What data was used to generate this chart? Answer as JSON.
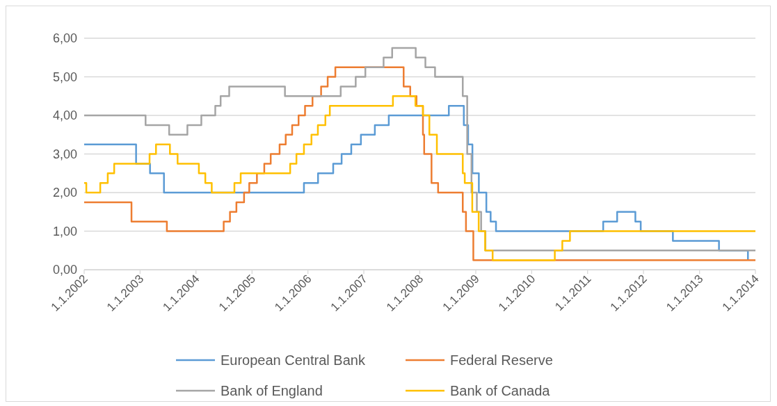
{
  "chart_data": {
    "type": "step",
    "xlim": [
      "2002-01-01",
      "2014-01-01"
    ],
    "xticks": [
      {
        "value": "2002-01-01",
        "label": "1.1.2002"
      },
      {
        "value": "2003-01-01",
        "label": "1.1.2003"
      },
      {
        "value": "2004-01-01",
        "label": "1.1.2004"
      },
      {
        "value": "2005-01-01",
        "label": "1.1.2005"
      },
      {
        "value": "2006-01-01",
        "label": "1.1.2006"
      },
      {
        "value": "2007-01-01",
        "label": "1.1.2007"
      },
      {
        "value": "2008-01-01",
        "label": "1.1.2008"
      },
      {
        "value": "2009-01-01",
        "label": "1.1.2009"
      },
      {
        "value": "2010-01-01",
        "label": "1.1.2010"
      },
      {
        "value": "2011-01-01",
        "label": "1.1.2011"
      },
      {
        "value": "2012-01-01",
        "label": "1.1.2012"
      },
      {
        "value": "2013-01-01",
        "label": "1.1.2013"
      },
      {
        "value": "2014-01-01",
        "label": "1.1.2014"
      }
    ],
    "ylim": [
      0,
      6
    ],
    "yticks": [
      {
        "value": 0,
        "label": "0,00"
      },
      {
        "value": 1,
        "label": "1,00"
      },
      {
        "value": 2,
        "label": "2,00"
      },
      {
        "value": 3,
        "label": "3,00"
      },
      {
        "value": 4,
        "label": "4,00"
      },
      {
        "value": 5,
        "label": "5,00"
      },
      {
        "value": 6,
        "label": "6,00"
      }
    ],
    "grid": "y",
    "legend": "bottom",
    "line_style": "solid",
    "series": [
      {
        "name": "European Central Bank",
        "color": "#5b9bd5",
        "x": [
          "2002-01-01",
          "2002-12-06",
          "2003-03-07",
          "2003-06-06",
          "2005-12-06",
          "2006-03-08",
          "2006-06-15",
          "2006-08-09",
          "2006-10-11",
          "2006-12-13",
          "2007-03-14",
          "2007-06-13",
          "2008-07-09",
          "2008-10-15",
          "2008-11-12",
          "2008-12-10",
          "2009-01-21",
          "2009-03-11",
          "2009-04-08",
          "2009-05-13",
          "2011-04-13",
          "2011-07-13",
          "2011-11-09",
          "2011-12-14",
          "2012-07-11",
          "2013-05-08",
          "2013-11-13"
        ],
        "values": [
          3.25,
          2.75,
          2.5,
          2.0,
          2.25,
          2.5,
          2.75,
          3.0,
          3.25,
          3.5,
          3.75,
          4.0,
          4.25,
          3.75,
          3.25,
          2.5,
          2.0,
          1.5,
          1.25,
          1.0,
          1.25,
          1.5,
          1.25,
          1.0,
          0.75,
          0.5,
          0.25
        ]
      },
      {
        "name": "Federal Reserve",
        "color": "#ed7d31",
        "x": [
          "2002-01-01",
          "2002-11-06",
          "2003-06-25",
          "2004-06-30",
          "2004-08-10",
          "2004-09-21",
          "2004-11-10",
          "2004-12-14",
          "2005-02-02",
          "2005-03-22",
          "2005-05-03",
          "2005-06-30",
          "2005-08-09",
          "2005-09-20",
          "2005-11-01",
          "2005-12-13",
          "2006-01-31",
          "2006-03-28",
          "2006-05-10",
          "2006-06-29",
          "2007-09-18",
          "2007-10-31",
          "2007-12-11",
          "2008-01-22",
          "2008-01-30",
          "2008-03-18",
          "2008-04-30",
          "2008-10-08",
          "2008-10-29",
          "2008-12-16",
          "2014-01-01"
        ],
        "values": [
          1.75,
          1.25,
          1.0,
          1.25,
          1.5,
          1.75,
          2.0,
          2.25,
          2.5,
          2.75,
          3.0,
          3.25,
          3.5,
          3.75,
          4.0,
          4.25,
          4.5,
          4.75,
          5.0,
          5.25,
          4.75,
          4.5,
          4.25,
          3.5,
          3.0,
          2.25,
          2.0,
          1.5,
          1.0,
          0.25,
          0.25
        ]
      },
      {
        "name": "Bank of England",
        "color": "#a5a5a5",
        "x": [
          "2002-01-01",
          "2003-02-06",
          "2003-07-10",
          "2003-11-06",
          "2004-02-05",
          "2004-05-06",
          "2004-06-10",
          "2004-08-05",
          "2005-08-04",
          "2006-08-03",
          "2006-11-09",
          "2007-01-11",
          "2007-05-10",
          "2007-07-05",
          "2007-12-06",
          "2008-02-07",
          "2008-04-10",
          "2008-10-08",
          "2008-11-06",
          "2008-12-04",
          "2009-01-08",
          "2009-02-05",
          "2009-03-05",
          "2014-01-01"
        ],
        "values": [
          4.0,
          3.75,
          3.5,
          3.75,
          4.0,
          4.25,
          4.5,
          4.75,
          4.5,
          4.75,
          5.0,
          5.25,
          5.5,
          5.75,
          5.5,
          5.25,
          5.0,
          4.5,
          3.0,
          2.0,
          1.5,
          1.0,
          0.5,
          0.5
        ]
      },
      {
        "name": "Bank of Canada",
        "color": "#ffc000",
        "x": [
          "2002-01-01",
          "2002-01-15",
          "2002-04-16",
          "2002-06-04",
          "2002-07-16",
          "2003-03-04",
          "2003-04-15",
          "2003-07-15",
          "2003-09-03",
          "2004-01-20",
          "2004-03-02",
          "2004-04-13",
          "2004-09-08",
          "2004-10-19",
          "2005-09-07",
          "2005-10-18",
          "2005-12-06",
          "2006-01-24",
          "2006-03-07",
          "2006-04-25",
          "2006-05-24",
          "2007-07-10",
          "2007-12-04",
          "2008-01-22",
          "2008-03-04",
          "2008-04-22",
          "2008-10-08",
          "2008-10-21",
          "2008-12-09",
          "2009-01-20",
          "2009-03-03",
          "2009-04-21",
          "2010-06-01",
          "2010-07-20",
          "2010-09-08",
          "2014-01-01"
        ],
        "values": [
          2.25,
          2.0,
          2.25,
          2.5,
          2.75,
          3.0,
          3.25,
          3.0,
          2.75,
          2.5,
          2.25,
          2.0,
          2.25,
          2.5,
          2.75,
          3.0,
          3.25,
          3.5,
          3.75,
          4.0,
          4.25,
          4.5,
          4.25,
          4.0,
          3.5,
          3.0,
          2.5,
          2.25,
          1.5,
          1.0,
          0.5,
          0.25,
          0.5,
          0.75,
          1.0,
          1.0
        ]
      }
    ]
  }
}
